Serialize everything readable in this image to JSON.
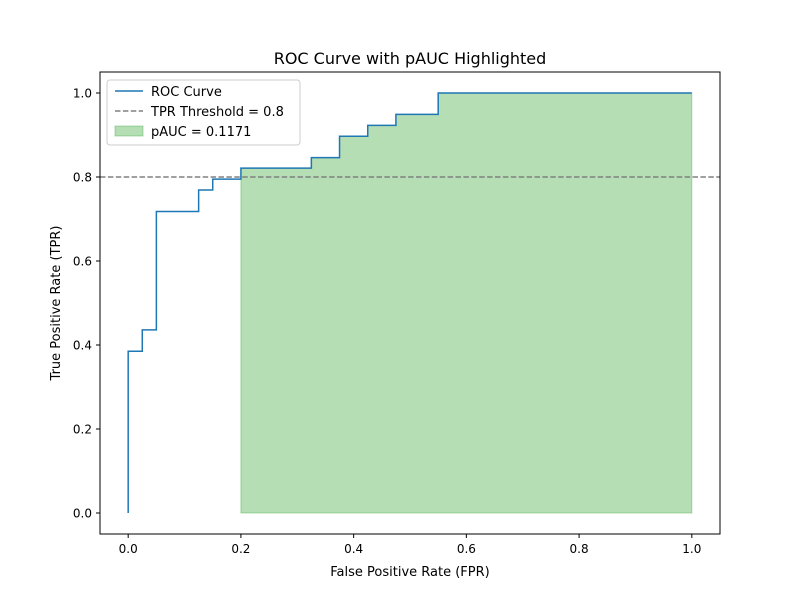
{
  "chart_data": {
    "type": "line",
    "title": "ROC Curve with pAUC Highlighted",
    "xlabel": "False Positive Rate (FPR)",
    "ylabel": "True Positive Rate (TPR)",
    "xlim": [
      -0.05,
      1.05
    ],
    "ylim": [
      -0.05,
      1.05
    ],
    "xticks": [
      0.0,
      0.2,
      0.4,
      0.6,
      0.8,
      1.0
    ],
    "yticks": [
      0.0,
      0.2,
      0.4,
      0.6,
      0.8,
      1.0
    ],
    "xtick_labels": [
      "0.0",
      "0.2",
      "0.4",
      "0.6",
      "0.8",
      "1.0"
    ],
    "ytick_labels": [
      "0.0",
      "0.2",
      "0.4",
      "0.6",
      "0.8",
      "1.0"
    ],
    "grid": false,
    "legend_position": "top-left",
    "series": [
      {
        "name": "ROC Curve",
        "style": "step",
        "color": "#1f77b4",
        "points": [
          [
            0.0,
            0.0
          ],
          [
            0.0,
            0.385
          ],
          [
            0.025,
            0.385
          ],
          [
            0.025,
            0.436
          ],
          [
            0.05,
            0.436
          ],
          [
            0.05,
            0.718
          ],
          [
            0.125,
            0.718
          ],
          [
            0.125,
            0.769
          ],
          [
            0.15,
            0.769
          ],
          [
            0.15,
            0.795
          ],
          [
            0.2,
            0.795
          ],
          [
            0.2,
            0.821
          ],
          [
            0.325,
            0.821
          ],
          [
            0.325,
            0.846
          ],
          [
            0.375,
            0.846
          ],
          [
            0.375,
            0.897
          ],
          [
            0.425,
            0.897
          ],
          [
            0.425,
            0.923
          ],
          [
            0.475,
            0.923
          ],
          [
            0.475,
            0.949
          ],
          [
            0.55,
            0.949
          ],
          [
            0.55,
            1.0
          ],
          [
            1.0,
            1.0
          ]
        ]
      }
    ],
    "threshold": {
      "name": "TPR Threshold = 0.8",
      "y": 0.8,
      "color": "#808080",
      "style": "dashed"
    },
    "shaded_region": {
      "name": "pAUC = 0.1171",
      "color": "#2ca02c",
      "x_start": 0.2,
      "x_end": 1.0
    }
  }
}
